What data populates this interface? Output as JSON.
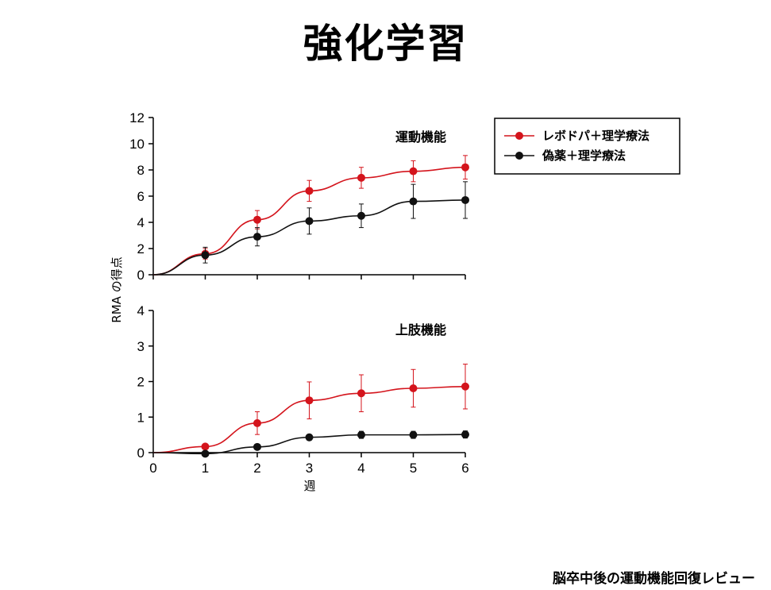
{
  "slide": {
    "title": "強化学習",
    "footer": "脳卒中後の運動機能回復レビュー"
  },
  "colors": {
    "levodopa": "#d4141c",
    "placebo": "#111111",
    "axis": "#000000"
  },
  "chart_data": [
    {
      "type": "line",
      "title": "運動機能",
      "ylabel": "RMA の得点",
      "xlabel": "週",
      "x": [
        0,
        1,
        2,
        3,
        4,
        5,
        6
      ],
      "xlim": [
        0,
        6
      ],
      "ylim": [
        0,
        12
      ],
      "yticks": [
        0,
        2,
        4,
        6,
        8,
        10,
        12
      ],
      "grid": false,
      "legend": "right",
      "series": [
        {
          "name": "レボドパ＋理学療法",
          "color": "#d4141c",
          "values": [
            0,
            1.6,
            4.2,
            6.4,
            7.4,
            7.9,
            8.2
          ],
          "errors": [
            0,
            0.4,
            0.7,
            0.8,
            0.8,
            0.8,
            0.9
          ]
        },
        {
          "name": "偽薬＋理学療法",
          "color": "#111111",
          "values": [
            0,
            1.5,
            2.9,
            4.1,
            4.5,
            5.6,
            5.7
          ],
          "errors": [
            0,
            0.6,
            0.7,
            1.0,
            0.9,
            1.3,
            1.4
          ]
        }
      ]
    },
    {
      "type": "line",
      "title": "上肢機能",
      "ylabel": "RMA の得点",
      "xlabel": "週",
      "x": [
        0,
        1,
        2,
        3,
        4,
        5,
        6
      ],
      "xlim": [
        0,
        6
      ],
      "ylim": [
        0,
        4
      ],
      "yticks": [
        0,
        1,
        2,
        3,
        4
      ],
      "grid": false,
      "series": [
        {
          "name": "レボドパ＋理学療法",
          "color": "#d4141c",
          "values": [
            0,
            0.17,
            0.83,
            1.47,
            1.67,
            1.81,
            1.86
          ],
          "errors": [
            0,
            0,
            0.32,
            0.52,
            0.52,
            0.53,
            0.63
          ]
        },
        {
          "name": "偽薬＋理学療法",
          "color": "#111111",
          "values": [
            0,
            -0.03,
            0.16,
            0.43,
            0.5,
            0.5,
            0.51
          ],
          "errors": [
            0,
            0,
            0,
            0.08,
            0.1,
            0.1,
            0.1
          ]
        }
      ]
    }
  ]
}
